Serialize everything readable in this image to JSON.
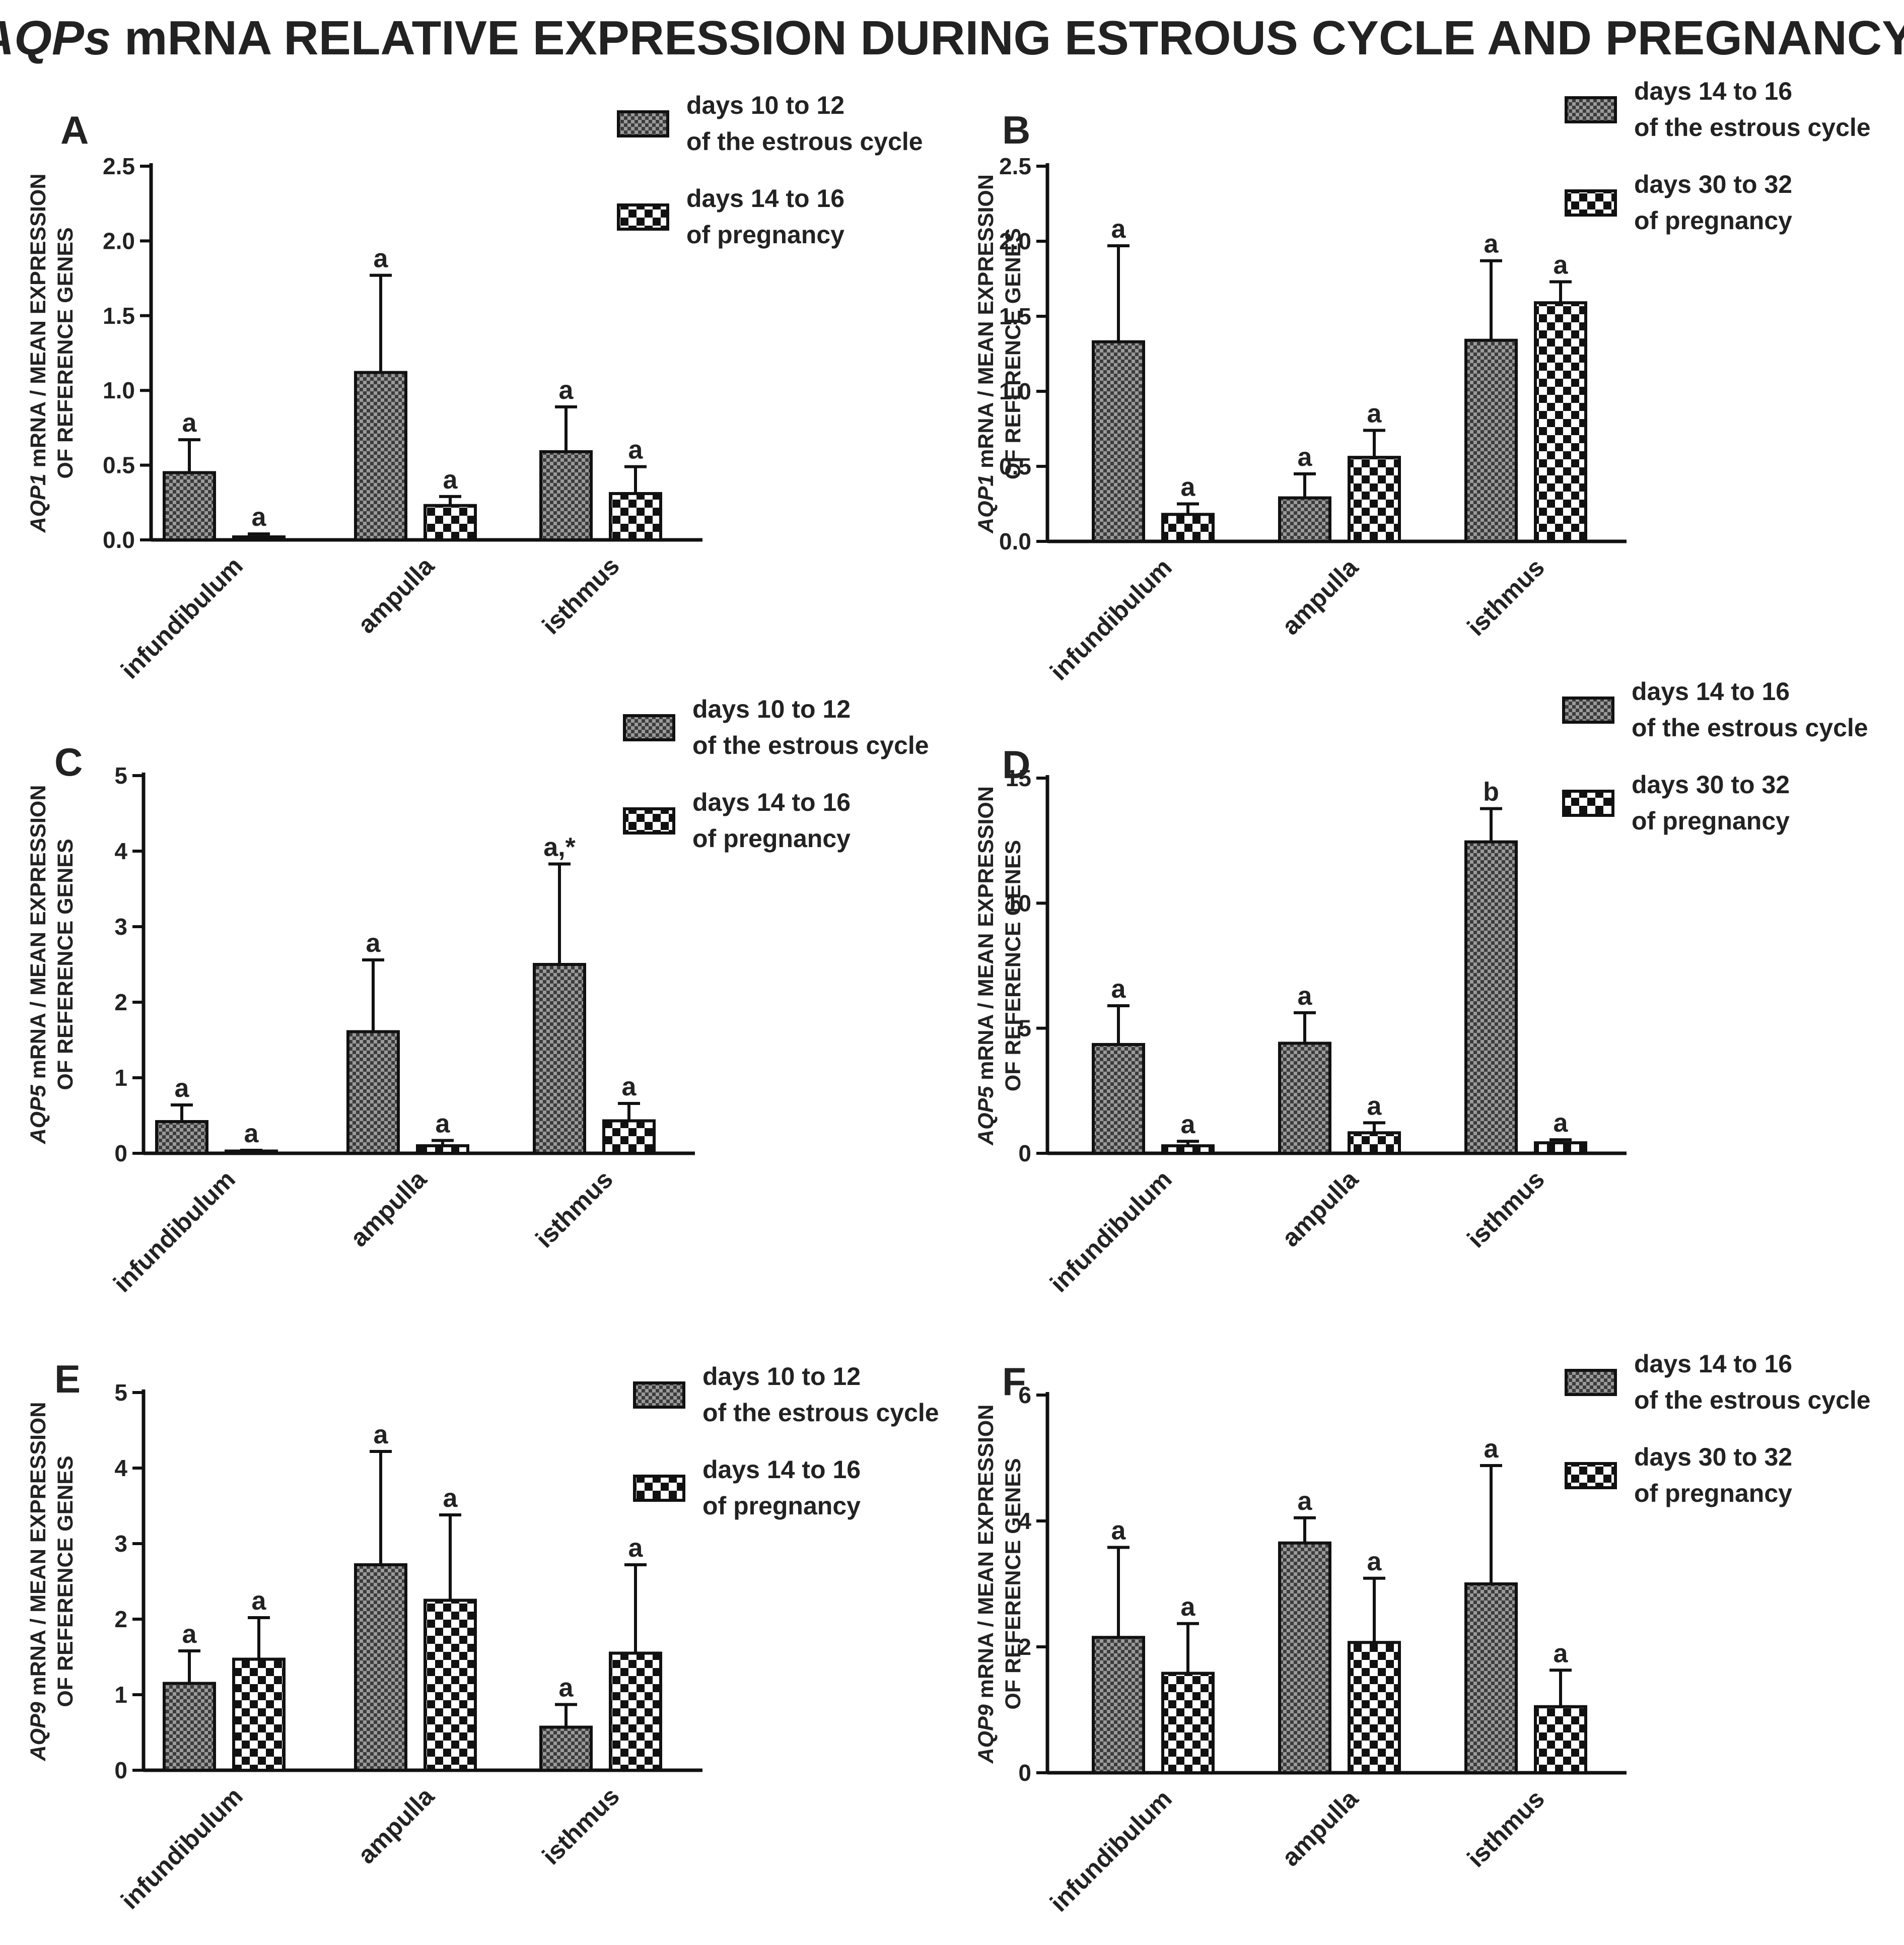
{
  "title": {
    "italic": "AQPs",
    "rest": " mRNA RELATIVE EXPRESSION DURING ESTROUS CYCLE AND PREGNANCY"
  },
  "colors": {
    "axis": "#111111",
    "text": "#222222",
    "background": "#ffffff",
    "fill_dense": "#8c8c8c",
    "fill_check": "#ffffff"
  },
  "chart_data": [
    {
      "panel": "A",
      "type": "bar",
      "ylabel": {
        "gene": "AQP1",
        "line1": " mRNA / MEAN EXPRESSION",
        "line2": "OF REFERENCE GENES"
      },
      "ylim": [
        0,
        2.5
      ],
      "yticks": [
        "0.0",
        "0.5",
        "1.0",
        "1.5",
        "2.0",
        "2.5"
      ],
      "categories": [
        "infundibulum",
        "ampulla",
        "isthmus"
      ],
      "legend": [
        {
          "line1": "days 10 to 12",
          "line2": "of the estrous cycle",
          "pattern": "dense"
        },
        {
          "line1": "days 14 to 16",
          "line2": "of pregnancy",
          "pattern": "check"
        }
      ],
      "series": [
        {
          "name": "days 10 to 12 of the estrous cycle",
          "values": [
            0.45,
            1.12,
            0.59
          ],
          "errors": [
            0.22,
            0.65,
            0.3
          ],
          "labels": [
            "a",
            "a",
            "a"
          ]
        },
        {
          "name": "days 14 to 16 of pregnancy",
          "values": [
            0.02,
            0.23,
            0.31
          ],
          "errors": [
            0.02,
            0.06,
            0.18
          ],
          "labels": [
            "a",
            "a",
            "a"
          ]
        }
      ]
    },
    {
      "panel": "B",
      "type": "bar",
      "ylabel": {
        "gene": "AQP1",
        "line1": " mRNA / MEAN EXPRESSION",
        "line2": "OF REFERENCE GENES"
      },
      "ylim": [
        0,
        2.5
      ],
      "yticks": [
        "0.0",
        "0.5",
        "1.0",
        "1.5",
        "2.0",
        "2.5"
      ],
      "categories": [
        "infundibulum",
        "ampulla",
        "isthmus"
      ],
      "legend": [
        {
          "line1": "days 14 to 16",
          "line2": "of the estrous cycle",
          "pattern": "dense"
        },
        {
          "line1": "days 30 to 32",
          "line2": "of pregnancy",
          "pattern": "check"
        }
      ],
      "series": [
        {
          "name": "days 14 to 16 of the estrous cycle",
          "values": [
            1.33,
            0.29,
            1.34
          ],
          "errors": [
            0.64,
            0.16,
            0.53
          ],
          "labels": [
            "a",
            "a",
            "a"
          ]
        },
        {
          "name": "days 30 to 32 of pregnancy",
          "values": [
            0.18,
            0.56,
            1.59
          ],
          "errors": [
            0.07,
            0.18,
            0.14
          ],
          "labels": [
            "a",
            "a",
            "a"
          ]
        }
      ]
    },
    {
      "panel": "C",
      "type": "bar",
      "ylabel": {
        "gene": "AQP5",
        "line1": " mRNA / MEAN EXPRESSION",
        "line2": "OF REFERENCE GENES"
      },
      "ylim": [
        0,
        5
      ],
      "yticks": [
        "0",
        "1",
        "2",
        "3",
        "4",
        "5"
      ],
      "categories": [
        "infundibulum",
        "ampulla",
        "isthmus"
      ],
      "legend": [
        {
          "line1": "days 10 to 12",
          "line2": "of the estrous cycle",
          "pattern": "dense"
        },
        {
          "line1": "days 14 to 16",
          "line2": "of pregnancy",
          "pattern": "check"
        }
      ],
      "series": [
        {
          "name": "days 10 to 12 of the estrous cycle",
          "values": [
            0.42,
            1.61,
            2.5
          ],
          "errors": [
            0.22,
            0.95,
            1.33
          ],
          "labels": [
            "a",
            "a",
            "a,*"
          ]
        },
        {
          "name": "days 14 to 16 of pregnancy",
          "values": [
            0.03,
            0.1,
            0.43
          ],
          "errors": [
            0.01,
            0.07,
            0.23
          ],
          "labels": [
            "a",
            "a",
            "a"
          ]
        }
      ]
    },
    {
      "panel": "D",
      "type": "bar",
      "ylabel": {
        "gene": "AQP5",
        "line1": " mRNA / MEAN EXPRESSION",
        "line2": "OF REFERENCE GENES"
      },
      "ylim": [
        0,
        15
      ],
      "yticks": [
        "0",
        "5",
        "10",
        "15"
      ],
      "categories": [
        "infundibulum",
        "ampulla",
        "isthmus"
      ],
      "legend": [
        {
          "line1": "days 14 to 16",
          "line2": "of the estrous cycle",
          "pattern": "dense"
        },
        {
          "line1": "days 30 to 32",
          "line2": "of pregnancy",
          "pattern": "check"
        }
      ],
      "series": [
        {
          "name": "days 14 to 16 of the estrous cycle",
          "values": [
            4.35,
            4.4,
            12.45
          ],
          "errors": [
            1.55,
            1.22,
            1.33
          ],
          "labels": [
            "a",
            "a",
            "b"
          ]
        },
        {
          "name": "days 30 to 32 of pregnancy",
          "values": [
            0.3,
            0.82,
            0.42
          ],
          "errors": [
            0.18,
            0.4,
            0.12
          ],
          "labels": [
            "a",
            "a",
            "a"
          ]
        }
      ]
    },
    {
      "panel": "E",
      "type": "bar",
      "ylabel": {
        "gene": "AQP9",
        "line1": " mRNA / MEAN EXPRESSION",
        "line2": "OF REFERENCE GENES"
      },
      "ylim": [
        0,
        5
      ],
      "yticks": [
        "0",
        "1",
        "2",
        "3",
        "4",
        "5"
      ],
      "categories": [
        "infundibulum",
        "ampulla",
        "isthmus"
      ],
      "legend": [
        {
          "line1": "days 10 to 12",
          "line2": "of the estrous cycle",
          "pattern": "dense"
        },
        {
          "line1": "days 14 to 16",
          "line2": "of pregnancy",
          "pattern": "check"
        }
      ],
      "series": [
        {
          "name": "days 10 to 12 of the estrous cycle",
          "values": [
            1.15,
            2.72,
            0.57
          ],
          "errors": [
            0.43,
            1.5,
            0.3
          ],
          "labels": [
            "a",
            "a",
            "a"
          ]
        },
        {
          "name": "days 14 to 16 of pregnancy",
          "values": [
            1.47,
            2.25,
            1.55
          ],
          "errors": [
            0.55,
            1.13,
            1.17
          ],
          "labels": [
            "a",
            "a",
            "a"
          ]
        }
      ]
    },
    {
      "panel": "F",
      "type": "bar",
      "ylabel": {
        "gene": "AQP9",
        "line1": " mRNA / MEAN EXPRESSION",
        "line2": "OF REFERENCE GENES"
      },
      "ylim": [
        0,
        6
      ],
      "yticks": [
        "0",
        "2",
        "4",
        "6"
      ],
      "categories": [
        "infundibulum",
        "ampulla",
        "isthmus"
      ],
      "legend": [
        {
          "line1": "days 14 to 16",
          "line2": "of the estrous cycle",
          "pattern": "dense"
        },
        {
          "line1": "days 30 to 32",
          "line2": "of pregnancy",
          "pattern": "check"
        }
      ],
      "series": [
        {
          "name": "days 14 to 16 of the estrous cycle",
          "values": [
            2.15,
            3.65,
            3.0
          ],
          "errors": [
            1.43,
            0.4,
            1.88
          ],
          "labels": [
            "a",
            "a",
            "a"
          ]
        },
        {
          "name": "days 30 to 32 of pregnancy",
          "values": [
            1.58,
            2.07,
            1.05
          ],
          "errors": [
            0.79,
            1.02,
            0.58
          ],
          "labels": [
            "a",
            "a",
            "a"
          ]
        }
      ]
    }
  ]
}
